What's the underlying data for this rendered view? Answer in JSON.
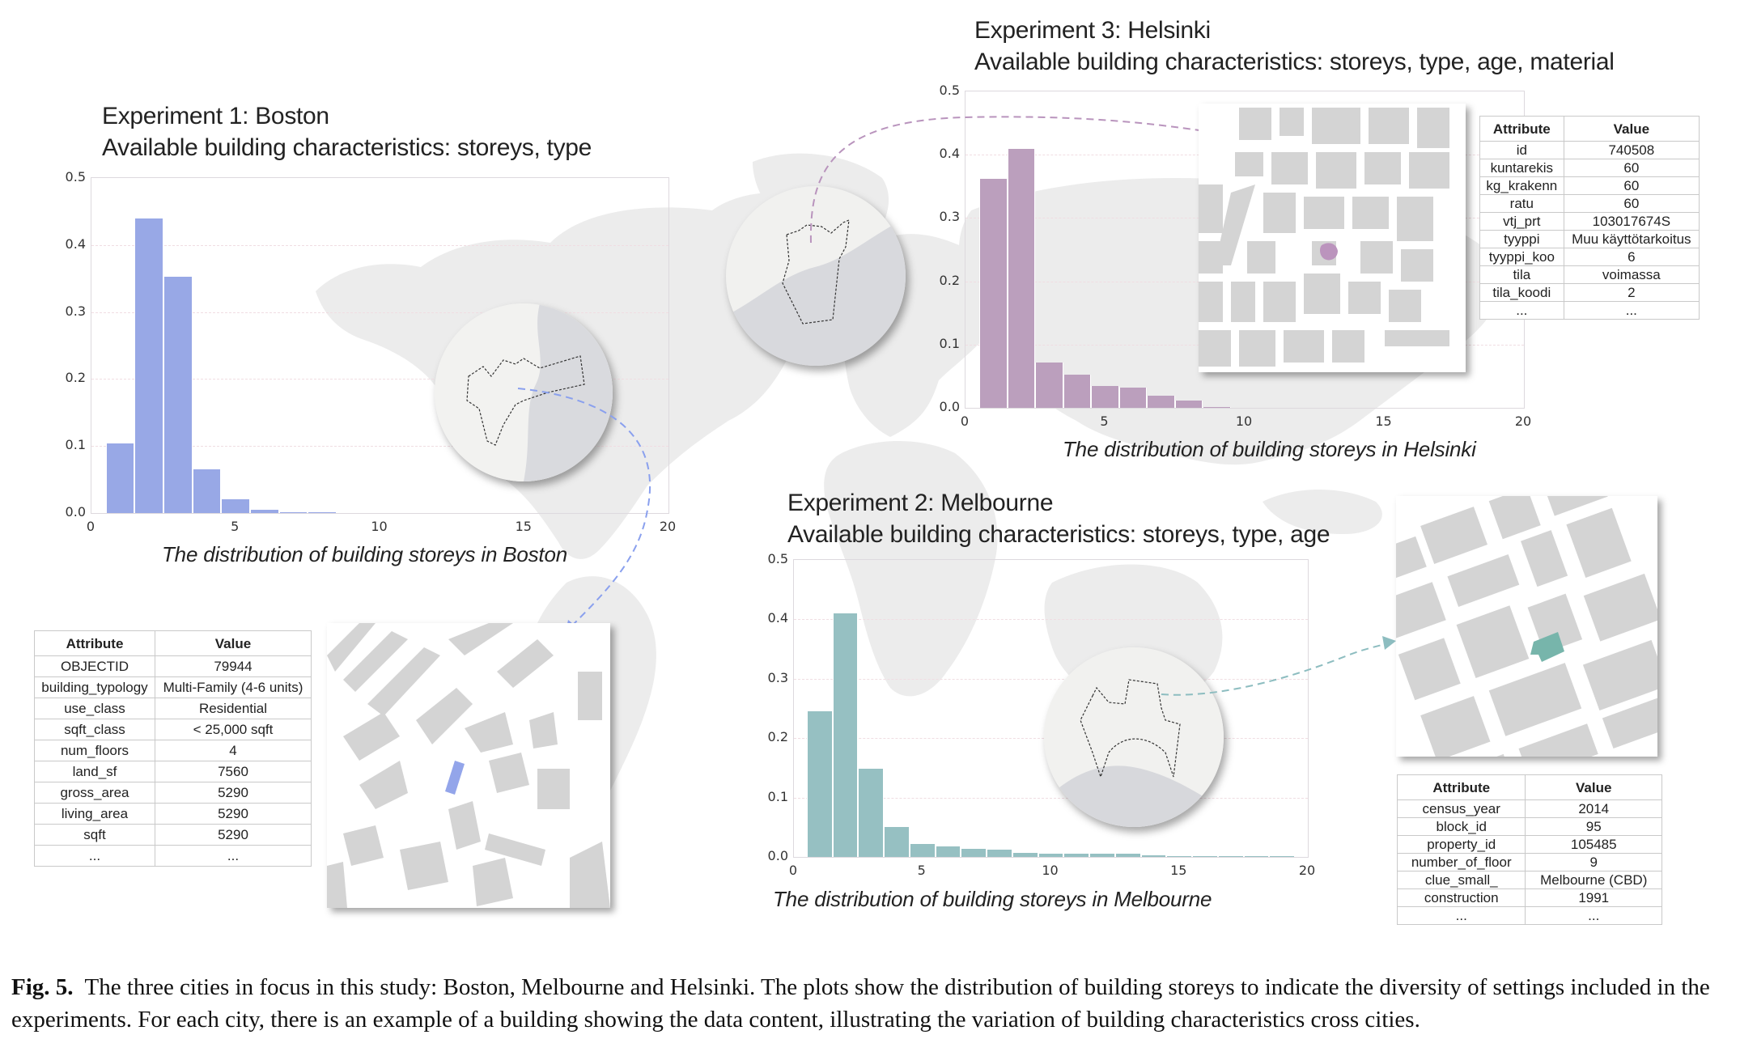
{
  "figure": {
    "label": "Fig. 5.",
    "caption": "The three cities in focus in this study: Boston, Melbourne and Helsinki. The plots show the distribution of building storeys to indicate the diversity of settings included in the experiments. For each city, there is an example of a building showing the data content, illustrating the variation of building characteristics cross cities."
  },
  "experiments": [
    {
      "title": "Experiment 1: Boston",
      "subtitle": "Available building characteristics: storeys, type",
      "caption": "The distribution of building storeys in Boston",
      "color": "#98a8e6",
      "table": {
        "headers": [
          "Attribute",
          "Value"
        ],
        "rows": [
          [
            "OBJECTID",
            "79944"
          ],
          [
            "building_typology",
            "Multi-Family (4-6 units)"
          ],
          [
            "use_class",
            "Residential"
          ],
          [
            "sqft_class",
            "< 25,000 sqft"
          ],
          [
            "num_floors",
            "4"
          ],
          [
            "land_sf",
            "7560"
          ],
          [
            "gross_area",
            "5290"
          ],
          [
            "living_area",
            "5290"
          ],
          [
            "sqft",
            "5290"
          ],
          [
            "...",
            "..."
          ]
        ]
      }
    },
    {
      "title": "Experiment 2: Melbourne",
      "subtitle": "Available building characteristics: storeys, type, age",
      "caption": "The distribution of building storeys in Melbourne",
      "color": "#96c0c2",
      "table": {
        "headers": [
          "Attribute",
          "Value"
        ],
        "rows": [
          [
            "census_year",
            "2014"
          ],
          [
            "block_id",
            "95"
          ],
          [
            "property_id",
            "105485"
          ],
          [
            "number_of_floor",
            "9"
          ],
          [
            "clue_small_",
            "Melbourne (CBD)"
          ],
          [
            "construction",
            "1991"
          ],
          [
            "...",
            "..."
          ]
        ]
      }
    },
    {
      "title": "Experiment 3: Helsinki",
      "subtitle": "Available building characteristics: storeys, type, age, material",
      "caption": "The distribution of building storeys in Helsinki",
      "color": "#bb9fbd",
      "table": {
        "headers": [
          "Attribute",
          "Value"
        ],
        "rows": [
          [
            "id",
            "740508"
          ],
          [
            "kuntarekis",
            "60"
          ],
          [
            "kg_krakenn",
            "60"
          ],
          [
            "ratu",
            "60"
          ],
          [
            "vtj_prt",
            "103017674S"
          ],
          [
            "tyyppi",
            "Muu käyttötarkoitus"
          ],
          [
            "tyyppi_koo",
            "6"
          ],
          [
            "tila",
            "voimassa"
          ],
          [
            "tila_koodi",
            "2"
          ],
          [
            "...",
            "..."
          ]
        ]
      }
    }
  ],
  "chart_data": [
    {
      "type": "bar",
      "title": "The distribution of building storeys in Boston",
      "xlabel": "",
      "ylabel": "",
      "xlim": [
        0,
        20
      ],
      "ylim": [
        0,
        0.5
      ],
      "xticks": [
        "0",
        "5",
        "10",
        "15",
        "20"
      ],
      "yticks": [
        "0.0",
        "0.1",
        "0.2",
        "0.3",
        "0.4",
        "0.5"
      ],
      "grid": true,
      "categories": [
        1,
        2,
        3,
        4,
        5,
        6,
        7,
        8
      ],
      "values": [
        0.104,
        0.44,
        0.353,
        0.065,
        0.021,
        0.005,
        0.001,
        0.001
      ]
    },
    {
      "type": "bar",
      "title": "The distribution of building storeys in Melbourne",
      "xlabel": "",
      "ylabel": "",
      "xlim": [
        0,
        20
      ],
      "ylim": [
        0,
        0.5
      ],
      "xticks": [
        "0",
        "5",
        "10",
        "15",
        "20"
      ],
      "yticks": [
        "0.0",
        "0.1",
        "0.2",
        "0.3",
        "0.4",
        "0.5"
      ],
      "grid": true,
      "categories": [
        1,
        2,
        3,
        4,
        5,
        6,
        7,
        8,
        9,
        10,
        11,
        12,
        13,
        14,
        15,
        16,
        17,
        18,
        19
      ],
      "values": [
        0.245,
        0.41,
        0.148,
        0.05,
        0.022,
        0.018,
        0.013,
        0.012,
        0.007,
        0.006,
        0.006,
        0.005,
        0.005,
        0.003,
        0.002,
        0.002,
        0.0005,
        0.002,
        0.001
      ]
    },
    {
      "type": "bar",
      "title": "The distribution of building storeys in Helsinki",
      "xlabel": "",
      "ylabel": "",
      "xlim": [
        0,
        20
      ],
      "ylim": [
        0,
        0.5
      ],
      "xticks": [
        "0",
        "5",
        "10",
        "15",
        "20"
      ],
      "yticks": [
        "0.0",
        "0.1",
        "0.2",
        "0.3",
        "0.4",
        "0.5"
      ],
      "grid": true,
      "categories": [
        1,
        2,
        3,
        4,
        5,
        6,
        7,
        8,
        9
      ],
      "values": [
        0.362,
        0.409,
        0.071,
        0.052,
        0.034,
        0.032,
        0.019,
        0.012,
        0.001
      ]
    }
  ]
}
